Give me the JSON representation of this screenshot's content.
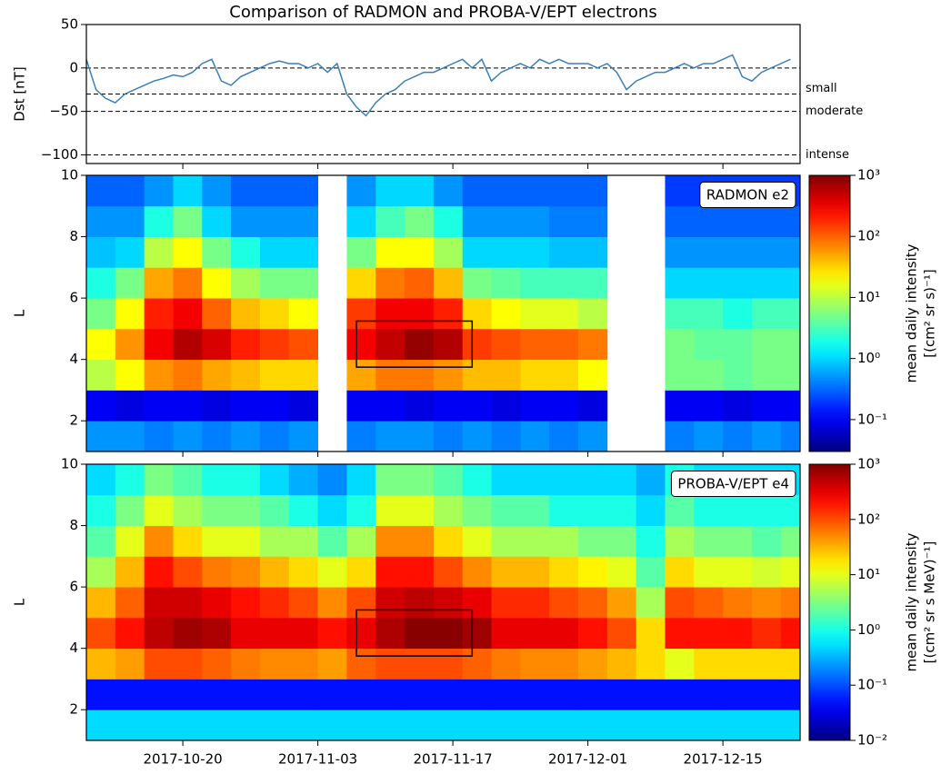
{
  "chart_data": [
    {
      "type": "line",
      "title": "Comparison of RADMON and PROBA-V/EPT electrons",
      "y_label": "Dst [nT]",
      "xlim": [
        "2017-10-10",
        "2017-12-23"
      ],
      "xticks": [
        "2017-10-20",
        "2017-11-03",
        "2017-11-17",
        "2017-12-01",
        "2017-12-15"
      ],
      "ylim": [
        -110,
        50
      ],
      "yticks": [
        {
          "value": -100,
          "label": "−100"
        },
        {
          "value": -50,
          "label": "−50"
        },
        0,
        50
      ],
      "thresholds": [
        {
          "value": 0
        },
        {
          "value": -30,
          "label": "small"
        },
        {
          "value": -50,
          "label": "moderate"
        },
        {
          "value": -100,
          "label": "intense"
        }
      ],
      "x": [
        "2017-10-10",
        "2017-10-11",
        "2017-10-12",
        "2017-10-13",
        "2017-10-14",
        "2017-10-15",
        "2017-10-16",
        "2017-10-17",
        "2017-10-18",
        "2017-10-19",
        "2017-10-20",
        "2017-10-21",
        "2017-10-22",
        "2017-10-23",
        "2017-10-24",
        "2017-10-25",
        "2017-10-26",
        "2017-10-27",
        "2017-10-28",
        "2017-10-29",
        "2017-10-30",
        "2017-10-31",
        "2017-11-01",
        "2017-11-02",
        "2017-11-03",
        "2017-11-04",
        "2017-11-05",
        "2017-11-06",
        "2017-11-07",
        "2017-11-08",
        "2017-11-09",
        "2017-11-10",
        "2017-11-11",
        "2017-11-12",
        "2017-11-13",
        "2017-11-14",
        "2017-11-15",
        "2017-11-16",
        "2017-11-17",
        "2017-11-18",
        "2017-11-19",
        "2017-11-20",
        "2017-11-21",
        "2017-11-22",
        "2017-11-23",
        "2017-11-24",
        "2017-11-25",
        "2017-11-26",
        "2017-11-27",
        "2017-11-28",
        "2017-11-29",
        "2017-11-30",
        "2017-12-01",
        "2017-12-02",
        "2017-12-03",
        "2017-12-04",
        "2017-12-05",
        "2017-12-06",
        "2017-12-07",
        "2017-12-08",
        "2017-12-09",
        "2017-12-10",
        "2017-12-11",
        "2017-12-12",
        "2017-12-13",
        "2017-12-14",
        "2017-12-15",
        "2017-12-16",
        "2017-12-17",
        "2017-12-18",
        "2017-12-19",
        "2017-12-20",
        "2017-12-21",
        "2017-12-22"
      ],
      "series": [
        {
          "color": "#3a7fb8",
          "values": [
            10,
            -25,
            -35,
            -40,
            -30,
            -25,
            -20,
            -15,
            -12,
            -8,
            -10,
            -5,
            5,
            10,
            -15,
            -20,
            -10,
            -5,
            0,
            5,
            8,
            5,
            5,
            0,
            5,
            -5,
            5,
            -30,
            -45,
            -55,
            -40,
            -30,
            -25,
            -15,
            -10,
            -5,
            -5,
            0,
            5,
            10,
            0,
            10,
            -15,
            -5,
            0,
            5,
            0,
            10,
            5,
            10,
            5,
            5,
            5,
            0,
            5,
            -5,
            -25,
            -15,
            -10,
            -5,
            -5,
            0,
            5,
            0,
            5,
            5,
            10,
            15,
            -10,
            -15,
            -5,
            0,
            5,
            10
          ]
        }
      ]
    },
    {
      "type": "heatmap",
      "label": "RADMON e2",
      "y_label": "L",
      "colormap": "jet",
      "log_z": true,
      "colorbar_label": [
        "mean daily intensity",
        "[(cm² sr s)⁻¹]"
      ],
      "xlim": [
        "2017-10-10",
        "2017-12-23"
      ],
      "xticks": [
        "2017-10-20",
        "2017-11-03",
        "2017-11-17",
        "2017-12-01",
        "2017-12-15"
      ],
      "ylim": [
        1,
        10
      ],
      "yticks": [
        2,
        4,
        6,
        8,
        10
      ],
      "zlim": [
        0.03,
        1000
      ],
      "zticks": [
        {
          "value": 0.1,
          "label": "10⁻¹"
        },
        {
          "value": 1,
          "label": "10⁰"
        },
        {
          "value": 10,
          "label": "10¹"
        },
        {
          "value": 100,
          "label": "10²"
        },
        {
          "value": 1000,
          "label": "10³"
        }
      ],
      "x_bins": [
        "2017-10-10",
        "2017-10-13",
        "2017-10-16",
        "2017-10-19",
        "2017-10-22",
        "2017-10-25",
        "2017-10-28",
        "2017-10-31",
        "2017-11-03",
        "2017-11-06",
        "2017-11-09",
        "2017-11-12",
        "2017-11-15",
        "2017-11-18",
        "2017-11-21",
        "2017-11-24",
        "2017-11-27",
        "2017-11-30",
        "2017-12-03",
        "2017-12-06",
        "2017-12-09",
        "2017-12-12",
        "2017-12-15",
        "2017-12-18",
        "2017-12-21",
        "2017-12-23"
      ],
      "y_bins": [
        1,
        2,
        3,
        4,
        5,
        6,
        7,
        8,
        9,
        10
      ],
      "z": [
        [
          0.5,
          0.5,
          0.4,
          0.5,
          0.4,
          0.5,
          0.4,
          0.5,
          null,
          0.4,
          0.5,
          0.5,
          0.4,
          0.5,
          0.4,
          0.5,
          0.4,
          0.5,
          null,
          null,
          0.4,
          0.5,
          0.4,
          0.5,
          0.4
        ],
        [
          0.1,
          0.08,
          0.1,
          0.1,
          0.08,
          0.1,
          0.1,
          0.08,
          null,
          0.1,
          0.1,
          0.08,
          0.1,
          0.1,
          0.08,
          0.1,
          0.1,
          0.08,
          null,
          null,
          0.1,
          0.1,
          0.08,
          0.1,
          0.1
        ],
        [
          10,
          20,
          60,
          80,
          50,
          40,
          30,
          30,
          null,
          50,
          80,
          80,
          60,
          40,
          40,
          30,
          30,
          20,
          null,
          null,
          5,
          5,
          4,
          5,
          5
        ],
        [
          20,
          60,
          300,
          600,
          400,
          200,
          150,
          120,
          null,
          300,
          500,
          800,
          600,
          150,
          120,
          100,
          100,
          80,
          null,
          null,
          5,
          4,
          4,
          5,
          5
        ],
        [
          5,
          20,
          200,
          300,
          100,
          40,
          30,
          20,
          null,
          150,
          300,
          300,
          200,
          30,
          20,
          15,
          15,
          10,
          null,
          null,
          3,
          3,
          2,
          3,
          3
        ],
        [
          2,
          5,
          50,
          80,
          20,
          8,
          5,
          5,
          null,
          30,
          80,
          100,
          40,
          5,
          4,
          3,
          3,
          3,
          null,
          null,
          1,
          1,
          1,
          1,
          1
        ],
        [
          0.8,
          1,
          10,
          20,
          5,
          2,
          1,
          1,
          null,
          5,
          20,
          20,
          8,
          1,
          1,
          1,
          0.8,
          0.8,
          null,
          null,
          0.5,
          0.5,
          0.5,
          0.5,
          0.5
        ],
        [
          0.5,
          0.5,
          2,
          5,
          1,
          0.5,
          0.5,
          0.5,
          null,
          1,
          3,
          5,
          2,
          0.5,
          0.5,
          0.5,
          0.4,
          0.4,
          null,
          null,
          0.3,
          0.3,
          0.3,
          0.3,
          0.3
        ],
        [
          0.3,
          0.3,
          0.5,
          1,
          0.5,
          0.3,
          0.3,
          0.3,
          null,
          0.5,
          1,
          1,
          0.5,
          0.3,
          0.3,
          0.3,
          0.3,
          0.3,
          null,
          null,
          0.2,
          0.2,
          0.2,
          0.2,
          0.2
        ]
      ],
      "highlight": {
        "x": [
          "2017-11-07",
          "2017-11-19"
        ],
        "y": [
          3.75,
          5.25
        ]
      }
    },
    {
      "type": "heatmap",
      "label": "PROBA-V/EPT e4",
      "y_label": "L",
      "colormap": "jet",
      "log_z": true,
      "colorbar_label": [
        "mean daily intensity",
        "[(cm² sr s MeV)⁻¹]"
      ],
      "xlim": [
        "2017-10-10",
        "2017-12-23"
      ],
      "xticks": [
        "2017-10-20",
        "2017-11-03",
        "2017-11-17",
        "2017-12-01",
        "2017-12-15"
      ],
      "ylim": [
        1,
        10
      ],
      "yticks": [
        2,
        4,
        6,
        8,
        10
      ],
      "zlim": [
        0.01,
        1000
      ],
      "zticks": [
        {
          "value": 0.01,
          "label": "10⁻²"
        },
        {
          "value": 0.1,
          "label": "10⁻¹"
        },
        {
          "value": 1,
          "label": "10⁰"
        },
        {
          "value": 10,
          "label": "10¹"
        },
        {
          "value": 100,
          "label": "10²"
        },
        {
          "value": 1000,
          "label": "10³"
        }
      ],
      "x_bins": [
        "2017-10-10",
        "2017-10-13",
        "2017-10-16",
        "2017-10-19",
        "2017-10-22",
        "2017-10-25",
        "2017-10-28",
        "2017-10-31",
        "2017-11-03",
        "2017-11-06",
        "2017-11-09",
        "2017-11-12",
        "2017-11-15",
        "2017-11-18",
        "2017-11-21",
        "2017-11-24",
        "2017-11-27",
        "2017-11-30",
        "2017-12-03",
        "2017-12-06",
        "2017-12-09",
        "2017-12-12",
        "2017-12-15",
        "2017-12-18",
        "2017-12-21",
        "2017-12-23"
      ],
      "y_bins": [
        1,
        2,
        3,
        4,
        5,
        6,
        7,
        8,
        9,
        10
      ],
      "z": [
        [
          0.5,
          0.5,
          0.5,
          0.5,
          0.5,
          0.5,
          0.5,
          0.5,
          0.5,
          0.5,
          0.5,
          0.5,
          0.5,
          0.5,
          0.5,
          0.5,
          0.5,
          0.5,
          0.5,
          0.5,
          0.5,
          0.5,
          0.5,
          0.5,
          0.5
        ],
        [
          0.05,
          0.05,
          0.05,
          0.05,
          0.05,
          0.05,
          0.05,
          0.05,
          0.05,
          0.05,
          0.05,
          0.05,
          0.05,
          0.05,
          0.05,
          0.05,
          0.05,
          0.05,
          0.05,
          0.05,
          0.05,
          0.05,
          0.05,
          0.05,
          0.05
        ],
        [
          30,
          40,
          100,
          100,
          80,
          60,
          50,
          50,
          40,
          80,
          100,
          100,
          100,
          80,
          60,
          50,
          50,
          40,
          30,
          20,
          10,
          20,
          20,
          20,
          20
        ],
        [
          100,
          200,
          500,
          700,
          600,
          300,
          300,
          300,
          200,
          300,
          600,
          900,
          900,
          700,
          300,
          300,
          300,
          200,
          100,
          20,
          200,
          200,
          200,
          150,
          200
        ],
        [
          30,
          80,
          400,
          400,
          300,
          200,
          150,
          100,
          50,
          100,
          400,
          500,
          400,
          300,
          150,
          150,
          100,
          80,
          40,
          5,
          100,
          80,
          60,
          50,
          60
        ],
        [
          5,
          30,
          200,
          100,
          60,
          50,
          30,
          20,
          10,
          20,
          200,
          200,
          100,
          50,
          30,
          30,
          20,
          15,
          10,
          2,
          20,
          10,
          10,
          8,
          10
        ],
        [
          2,
          10,
          50,
          20,
          10,
          10,
          5,
          5,
          2,
          5,
          50,
          50,
          20,
          10,
          5,
          5,
          5,
          3,
          3,
          1,
          5,
          3,
          3,
          2,
          3
        ],
        [
          1,
          3,
          10,
          5,
          3,
          3,
          2,
          1,
          0.5,
          1,
          10,
          10,
          5,
          3,
          2,
          2,
          1,
          1,
          1,
          0.5,
          2,
          1,
          1,
          1,
          1
        ],
        [
          0.5,
          1,
          3,
          2,
          1,
          1,
          0.5,
          0.3,
          0.2,
          0.5,
          3,
          3,
          2,
          1,
          0.5,
          0.5,
          0.5,
          0.5,
          0.5,
          0.3,
          1,
          0.5,
          0.5,
          0.5,
          0.5
        ]
      ],
      "highlight": {
        "x": [
          "2017-11-07",
          "2017-11-19"
        ],
        "y": [
          3.75,
          5.25
        ]
      }
    }
  ]
}
